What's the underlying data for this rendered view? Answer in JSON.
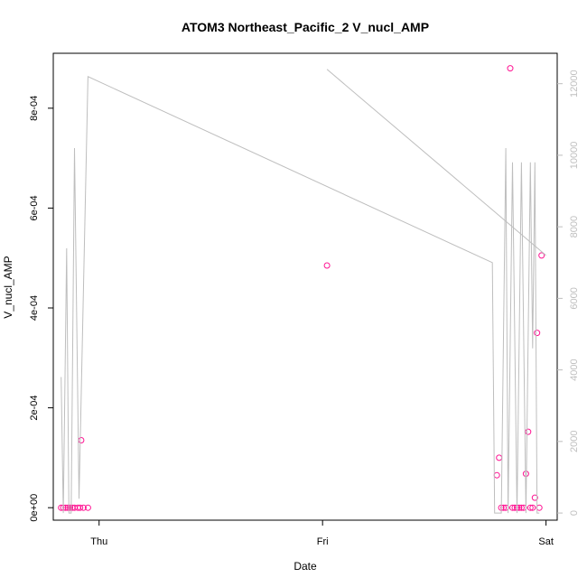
{
  "chart_data": {
    "type": "scatter",
    "title": "ATOM3 Northeast_Pacific_2 V_nucl_AMP",
    "xlabel": "Date",
    "ylabel": "V_nucl_AMP",
    "x_ticks": [
      {
        "label": "Thu",
        "value": 0.0
      },
      {
        "label": "Fri",
        "value": 1.0
      },
      {
        "label": "Sat",
        "value": 2.0
      }
    ],
    "xlim": [
      -0.205,
      2.05
    ],
    "y_left": {
      "lim": [
        -2.5e-05,
        0.00091
      ],
      "ticks": [
        {
          "label": "0e+00",
          "value": 0
        },
        {
          "label": "2e-04",
          "value": 0.0002
        },
        {
          "label": "4e-04",
          "value": 0.0004
        },
        {
          "label": "6e-04",
          "value": 0.0006
        },
        {
          "label": "8e-04",
          "value": 0.0008
        }
      ]
    },
    "y_right": {
      "lim": [
        -200,
        12850
      ],
      "color": "#bebebe",
      "ticks": [
        {
          "label": "0",
          "value": 0
        },
        {
          "label": "2000",
          "value": 2000
        },
        {
          "label": "4000",
          "value": 4000
        },
        {
          "label": "6000",
          "value": 6000
        },
        {
          "label": "8000",
          "value": 8000
        },
        {
          "label": "10000",
          "value": 10000
        },
        {
          "label": "12000",
          "value": 12000
        }
      ]
    },
    "series": [
      {
        "kind": "points",
        "axis": "left",
        "color": "#ff1493",
        "points": [
          [
            -0.17,
            0
          ],
          [
            -0.16,
            0
          ],
          [
            -0.15,
            0
          ],
          [
            -0.14,
            0
          ],
          [
            -0.13,
            0
          ],
          [
            -0.12,
            0
          ],
          [
            -0.11,
            0
          ],
          [
            -0.095,
            0
          ],
          [
            -0.085,
            0
          ],
          [
            -0.08,
            0.000135
          ],
          [
            -0.07,
            0
          ],
          [
            -0.05,
            0
          ],
          [
            1.02,
            0.000485
          ],
          [
            1.78,
            6.5e-05
          ],
          [
            1.79,
            0.0001
          ],
          [
            1.8,
            0
          ],
          [
            1.81,
            0
          ],
          [
            1.82,
            0
          ],
          [
            1.84,
            0.00088
          ],
          [
            1.85,
            0
          ],
          [
            1.86,
            0
          ],
          [
            1.87,
            0
          ],
          [
            1.88,
            0
          ],
          [
            1.89,
            0
          ],
          [
            1.9,
            0
          ],
          [
            1.91,
            6.8e-05
          ],
          [
            1.92,
            0.000152
          ],
          [
            1.93,
            0
          ],
          [
            1.94,
            0
          ],
          [
            1.95,
            2e-05
          ],
          [
            1.96,
            0.00035
          ],
          [
            1.97,
            0
          ],
          [
            1.98,
            0.000505
          ]
        ]
      },
      {
        "kind": "line",
        "axis": "right",
        "color": "#bebebe",
        "points": [
          [
            -0.17,
            3800
          ],
          [
            -0.16,
            0
          ],
          [
            -0.145,
            7400
          ],
          [
            -0.135,
            0
          ],
          [
            -0.125,
            0
          ],
          [
            -0.11,
            10200
          ],
          [
            -0.09,
            400
          ],
          [
            -0.05,
            12200
          ],
          [
            1.76,
            7000
          ],
          [
            1.77,
            0
          ],
          [
            1.8,
            0
          ],
          [
            1.82,
            10200
          ],
          [
            1.83,
            0
          ],
          [
            1.85,
            9800
          ],
          [
            1.87,
            0
          ],
          [
            1.89,
            9800
          ],
          [
            1.91,
            0
          ],
          [
            1.93,
            9800
          ],
          [
            1.94,
            4600
          ],
          [
            1.95,
            9800
          ],
          [
            1.96,
            0
          ],
          [
            1.97,
            0
          ]
        ]
      },
      {
        "kind": "line",
        "axis": "right",
        "color": "#bebebe",
        "points": [
          [
            1.02,
            12400
          ],
          [
            2.0,
            7200
          ]
        ]
      }
    ]
  }
}
